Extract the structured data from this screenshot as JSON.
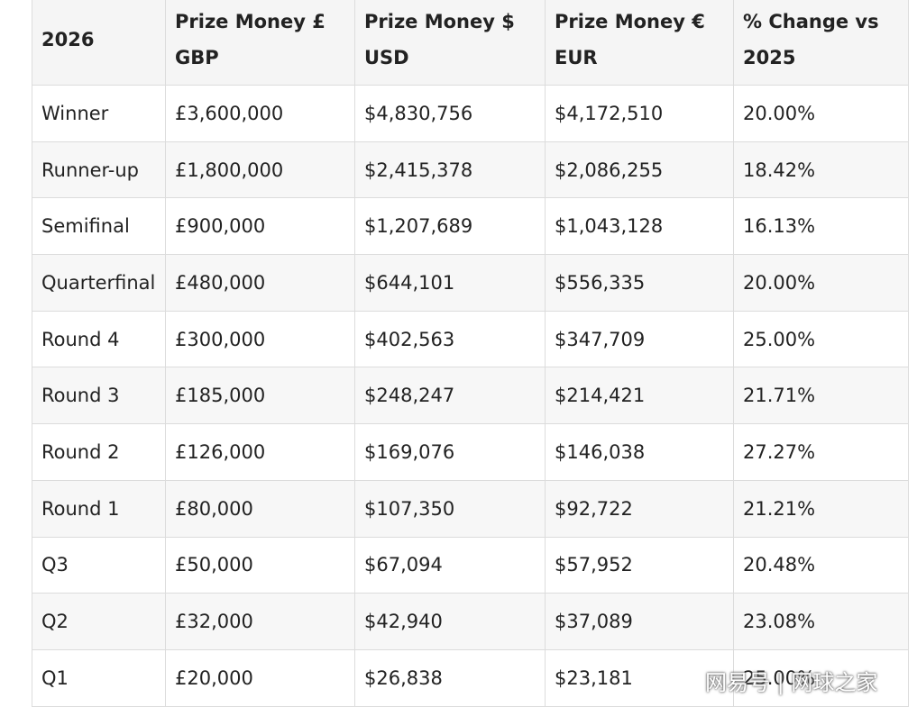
{
  "table": {
    "header": [
      "2026",
      "Prize Money £ GBP",
      "Prize Money $ USD",
      "Prize Money € EUR",
      "% Change vs 2025"
    ],
    "rows": [
      [
        "Winner",
        "£3,600,000",
        "$4,830,756",
        "$4,172,510",
        "20.00%"
      ],
      [
        "Runner-up",
        "£1,800,000",
        "$2,415,378",
        "$2,086,255",
        "18.42%"
      ],
      [
        "Semifinal",
        "£900,000",
        "$1,207,689",
        "$1,043,128",
        "16.13%"
      ],
      [
        "Quarterfinal",
        "£480,000",
        "$644,101",
        "$556,335",
        "20.00%"
      ],
      [
        "Round 4",
        "£300,000",
        "$402,563",
        "$347,709",
        "25.00%"
      ],
      [
        "Round 3",
        "£185,000",
        "$248,247",
        "$214,421",
        "21.71%"
      ],
      [
        "Round 2",
        "£126,000",
        "$169,076",
        "$146,038",
        "27.27%"
      ],
      [
        "Round 1",
        "£80,000",
        "$107,350",
        "$92,722",
        "21.21%"
      ],
      [
        "Q3",
        "£50,000",
        "$67,094",
        "$57,952",
        "20.48%"
      ],
      [
        "Q2",
        "£32,000",
        "$42,940",
        "$37,089",
        "23.08%"
      ],
      [
        "Q1",
        "£20,000",
        "$26,838",
        "$23,181",
        "25.00%"
      ]
    ]
  },
  "watermark": "网易号 | 网球之家"
}
